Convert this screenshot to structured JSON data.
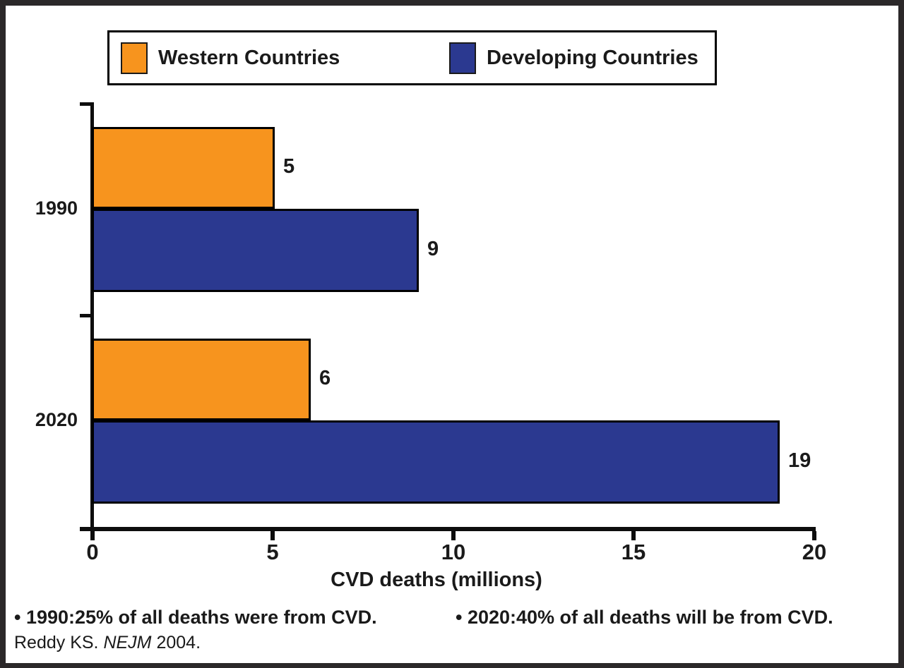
{
  "chart_data": {
    "type": "bar",
    "orientation": "horizontal",
    "categories": [
      "1990",
      "2020"
    ],
    "series": [
      {
        "name": "Western Countries",
        "values": [
          5,
          6
        ],
        "color": "#F7941E"
      },
      {
        "name": "Developing Countries",
        "values": [
          9,
          19
        ],
        "color": "#2B3990"
      }
    ],
    "title": "",
    "xlabel": "CVD deaths (millions)",
    "ylabel": "",
    "xlim": [
      0,
      20
    ],
    "xticks": [
      0,
      5,
      10,
      15,
      20
    ],
    "grid": false,
    "legend_position": "top",
    "bar_border_color": "#000000",
    "data_labels": [
      [
        5,
        6
      ],
      [
        9,
        19
      ]
    ]
  },
  "legend": {
    "items": [
      {
        "label": "Western Countries",
        "color": "#F7941E"
      },
      {
        "label": "Developing Countries",
        "color": "#2B3990"
      }
    ]
  },
  "notes": [
    "• 1990:25% of all deaths were from CVD.",
    "• 2020:40% of all deaths will be from CVD."
  ],
  "citation": {
    "prefix": "Reddy KS. ",
    "journal": "NEJM",
    "suffix": " 2004."
  }
}
